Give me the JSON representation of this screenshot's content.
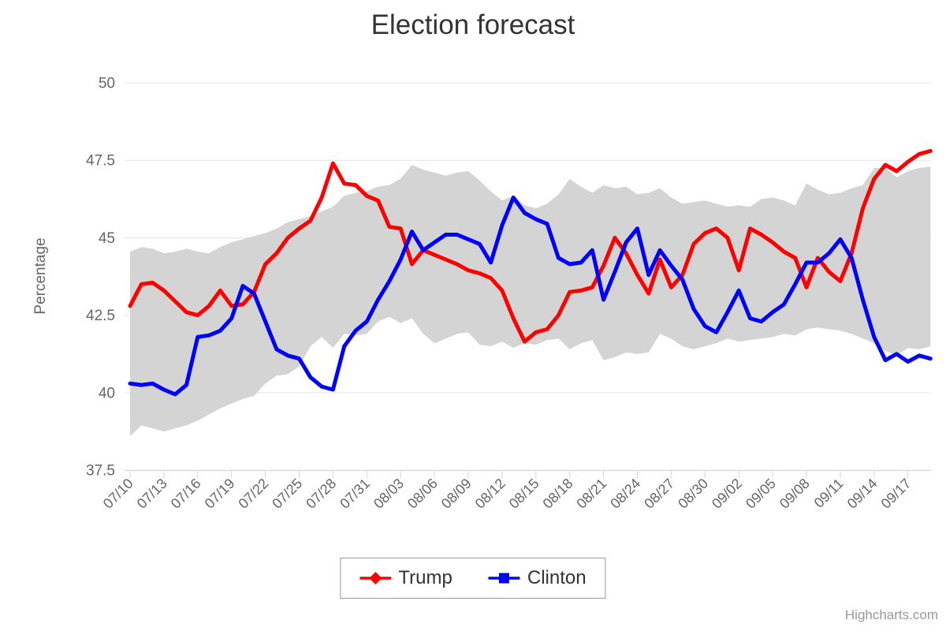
{
  "title": "Election forecast",
  "y_axis": {
    "title": "Percentage"
  },
  "legend": {
    "items": [
      {
        "label": "Trump",
        "color": "#ff0000",
        "marker": "diamond"
      },
      {
        "label": "Clinton",
        "color": "#0000ff",
        "marker": "square"
      }
    ]
  },
  "credit": {
    "label": "Highcharts.com"
  },
  "colors": {
    "trump": "#ff0000",
    "clinton": "#0000ff",
    "band": "#d4d4d4",
    "grid": "#e6e6e6",
    "axis": "#ccd6eb",
    "label": "#666666",
    "title": "#333333",
    "credit": "#999999"
  },
  "chart_data": {
    "type": "line",
    "title": "Election forecast",
    "xlabel": "",
    "ylabel": "Percentage",
    "ylim": [
      37.5,
      50
    ],
    "y_ticks": [
      50,
      47.5,
      45,
      42.5,
      40,
      37.5
    ],
    "grid": true,
    "legend_position": "bottom",
    "x_tick_every": 3,
    "x_tick_labels": [
      "07/10",
      "07/13",
      "07/16",
      "07/19",
      "07/22",
      "07/25",
      "07/28",
      "07/31",
      "08/03",
      "08/06",
      "08/09",
      "08/12",
      "08/15",
      "08/18",
      "08/21",
      "08/24",
      "08/27",
      "08/30",
      "09/02",
      "09/05",
      "09/08",
      "09/11",
      "09/14",
      "09/17"
    ],
    "x": [
      "07/10",
      "07/11",
      "07/12",
      "07/13",
      "07/14",
      "07/15",
      "07/16",
      "07/17",
      "07/18",
      "07/19",
      "07/20",
      "07/21",
      "07/22",
      "07/23",
      "07/24",
      "07/25",
      "07/26",
      "07/27",
      "07/28",
      "07/29",
      "07/30",
      "07/31",
      "08/01",
      "08/02",
      "08/03",
      "08/04",
      "08/05",
      "08/06",
      "08/07",
      "08/08",
      "08/09",
      "08/10",
      "08/11",
      "08/12",
      "08/13",
      "08/14",
      "08/15",
      "08/16",
      "08/17",
      "08/18",
      "08/19",
      "08/20",
      "08/21",
      "08/22",
      "08/23",
      "08/24",
      "08/25",
      "08/26",
      "08/27",
      "08/28",
      "08/29",
      "08/30",
      "08/31",
      "09/01",
      "09/02",
      "09/03",
      "09/04",
      "09/05",
      "09/06",
      "09/07",
      "09/08",
      "09/09",
      "09/10",
      "09/11",
      "09/12",
      "09/13",
      "09/14",
      "09/15",
      "09/16",
      "09/17",
      "09/18",
      "09/19"
    ],
    "series": [
      {
        "name": "Trump",
        "color": "#ff0000",
        "marker": "diamond",
        "values": [
          42.8,
          43.5,
          43.55,
          43.3,
          42.95,
          42.6,
          42.5,
          42.8,
          43.3,
          42.8,
          42.85,
          43.25,
          44.15,
          44.5,
          45.0,
          45.3,
          45.55,
          46.3,
          47.4,
          46.75,
          46.7,
          46.35,
          46.2,
          45.35,
          45.3,
          44.15,
          44.6,
          44.45,
          44.3,
          44.15,
          43.95,
          43.85,
          43.7,
          43.3,
          42.4,
          41.65,
          41.95,
          42.05,
          42.5,
          43.25,
          43.3,
          43.4,
          44.1,
          45.0,
          44.5,
          43.8,
          43.2,
          44.3,
          43.4,
          43.8,
          44.8,
          45.15,
          45.3,
          45.0,
          43.95,
          45.3,
          45.1,
          44.85,
          44.55,
          44.35,
          43.4,
          44.35,
          43.9,
          43.6,
          44.5,
          45.95,
          46.9,
          47.35,
          47.15,
          47.45,
          47.7,
          47.8
        ]
      },
      {
        "name": "Clinton",
        "color": "#0000ff",
        "marker": "square",
        "values": [
          40.3,
          40.25,
          40.3,
          40.1,
          39.95,
          40.25,
          41.8,
          41.85,
          42.0,
          42.4,
          43.45,
          43.2,
          42.3,
          41.4,
          41.2,
          41.1,
          40.5,
          40.2,
          40.1,
          41.5,
          42.0,
          42.3,
          43.0,
          43.6,
          44.3,
          45.2,
          44.6,
          44.85,
          45.1,
          45.1,
          44.95,
          44.8,
          44.2,
          45.4,
          46.3,
          45.8,
          45.6,
          45.45,
          44.35,
          44.15,
          44.2,
          44.6,
          43.0,
          43.9,
          44.85,
          45.3,
          43.8,
          44.6,
          44.1,
          43.65,
          42.7,
          42.15,
          41.95,
          42.6,
          43.3,
          42.4,
          42.3,
          42.6,
          42.85,
          43.5,
          44.2,
          44.2,
          44.5,
          44.95,
          44.35,
          43.0,
          41.8,
          41.05,
          41.25,
          41.0,
          41.2,
          41.1
        ]
      },
      {
        "name": "Range",
        "type": "arearange",
        "color": "#d4d4d4",
        "low": [
          38.6,
          38.95,
          38.85,
          38.75,
          38.85,
          38.95,
          39.1,
          39.3,
          39.5,
          39.65,
          39.8,
          39.9,
          40.3,
          40.55,
          40.6,
          40.85,
          41.5,
          41.8,
          41.45,
          41.9,
          41.85,
          41.9,
          42.3,
          42.45,
          42.25,
          42.4,
          41.9,
          41.6,
          41.75,
          41.9,
          41.95,
          41.55,
          41.5,
          41.65,
          41.45,
          41.6,
          41.55,
          41.7,
          41.75,
          41.4,
          41.6,
          41.7,
          41.05,
          41.15,
          41.3,
          41.25,
          41.3,
          41.9,
          41.75,
          41.5,
          41.4,
          41.5,
          41.6,
          41.75,
          41.65,
          41.7,
          41.75,
          41.8,
          41.9,
          41.85,
          42.05,
          42.1,
          42.05,
          42.0,
          41.9,
          41.75,
          41.6,
          41.35,
          41.2,
          41.45,
          41.4,
          41.5
        ],
        "high": [
          44.55,
          44.7,
          44.65,
          44.5,
          44.55,
          44.65,
          44.55,
          44.5,
          44.7,
          44.85,
          44.95,
          45.05,
          45.15,
          45.3,
          45.5,
          45.6,
          45.7,
          45.85,
          46.0,
          46.35,
          46.45,
          46.5,
          46.65,
          46.7,
          46.9,
          47.35,
          47.2,
          47.1,
          47.0,
          47.1,
          47.15,
          46.85,
          46.5,
          46.2,
          46.35,
          46.05,
          45.95,
          46.1,
          46.4,
          46.9,
          46.65,
          46.45,
          46.7,
          46.6,
          46.65,
          46.4,
          46.45,
          46.6,
          46.3,
          46.1,
          46.15,
          46.2,
          46.1,
          46.0,
          46.05,
          46.0,
          46.25,
          46.3,
          46.2,
          46.05,
          46.75,
          46.55,
          46.4,
          46.45,
          46.6,
          46.7,
          47.25,
          47.25,
          46.95,
          47.15,
          47.25,
          47.3
        ]
      }
    ]
  }
}
